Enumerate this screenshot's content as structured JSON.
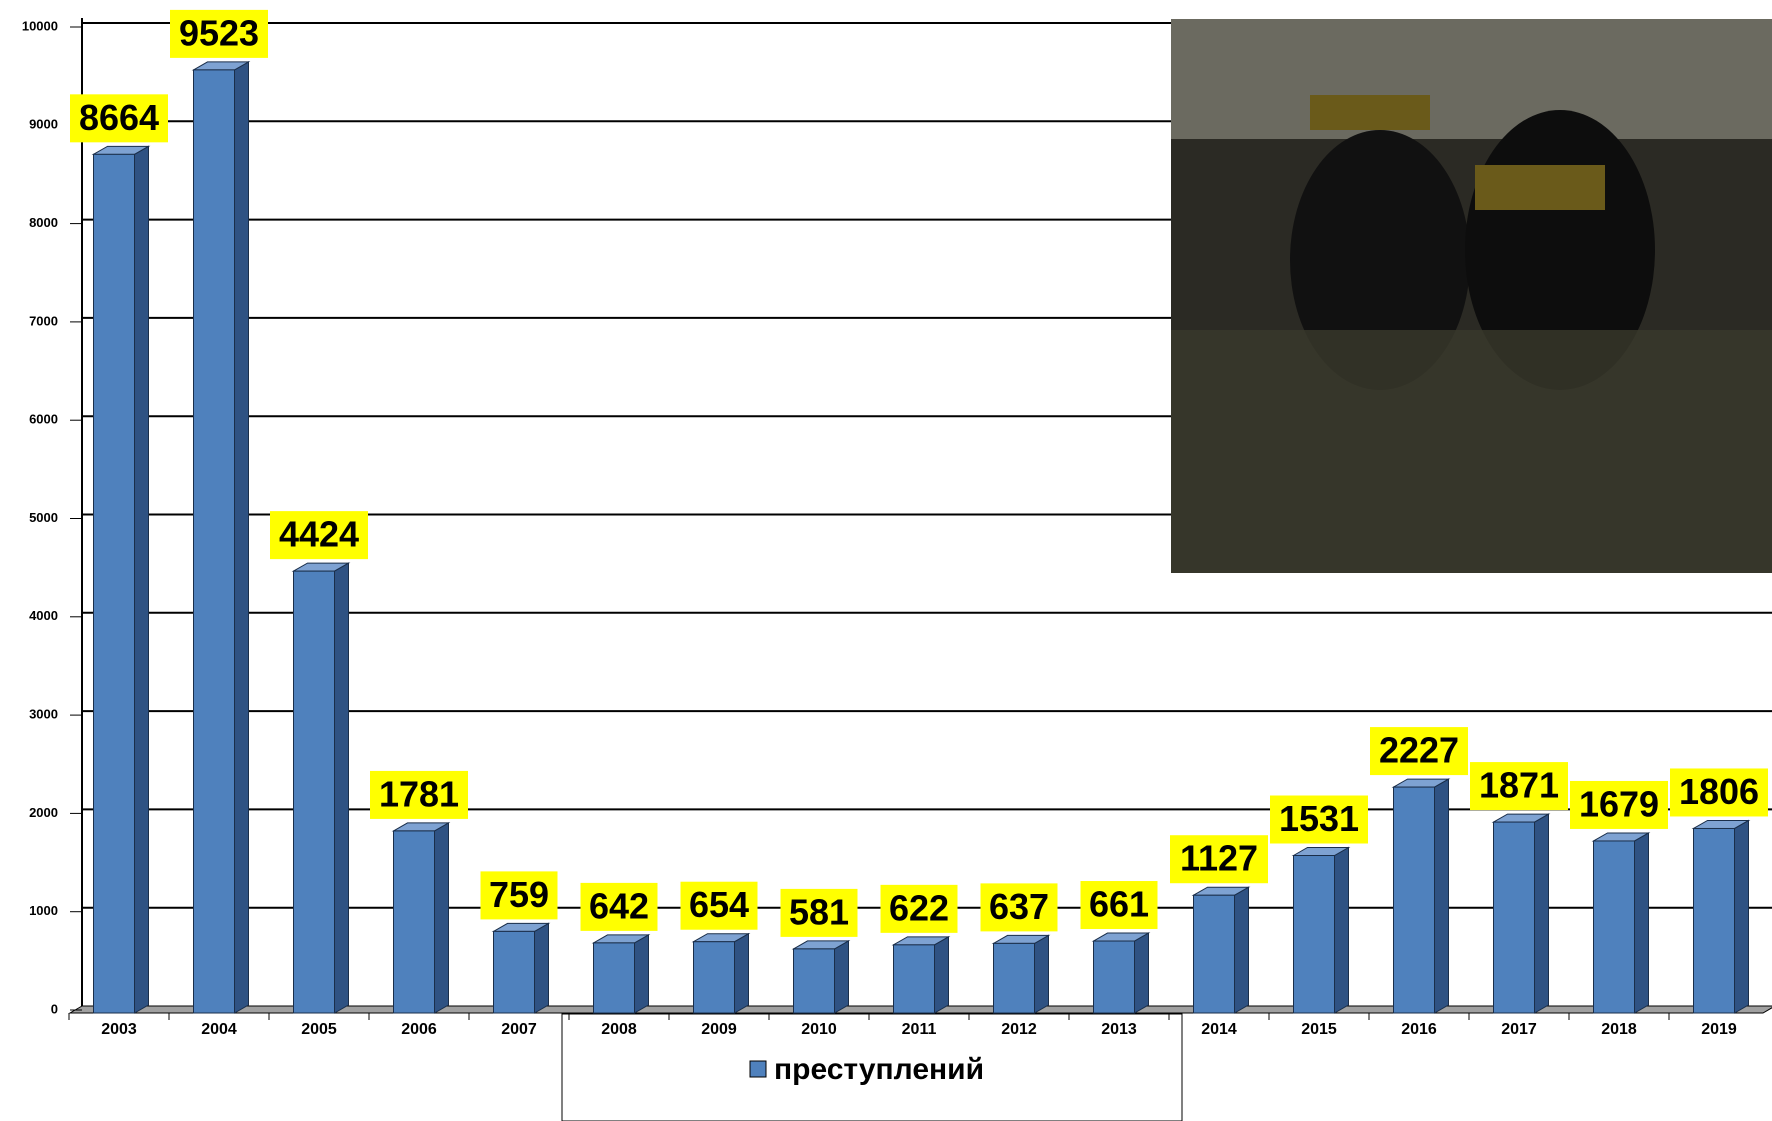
{
  "chart_data": {
    "type": "bar3d",
    "categories": [
      "2003",
      "2004",
      "2005",
      "2006",
      "2007",
      "2008",
      "2009",
      "2010",
      "2011",
      "2012",
      "2013",
      "2014",
      "2015",
      "2016",
      "2017",
      "2018",
      "2019"
    ],
    "series": [
      {
        "name": "преступлений",
        "color": "#4f81bd",
        "values": [
          8664,
          9523,
          4424,
          1781,
          759,
          642,
          654,
          581,
          622,
          637,
          661,
          1127,
          1531,
          2227,
          1871,
          1679,
          1806
        ]
      }
    ],
    "ylim": [
      0,
      10000
    ],
    "yticks": [
      0,
      1000,
      2000,
      3000,
      4000,
      5000,
      6000,
      7000,
      8000,
      9000,
      10000
    ],
    "grid": true,
    "data_labels": true,
    "label_background": "#ffff00"
  }
}
